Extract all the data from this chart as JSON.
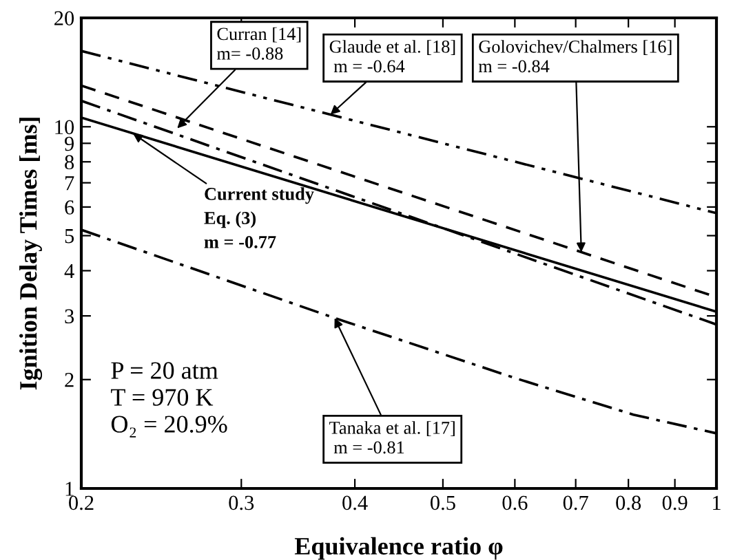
{
  "chart_data": {
    "type": "line",
    "xlabel": "Equivalence ratio φ",
    "ylabel": "Ignition Delay Times [ms]",
    "log": "xy",
    "xlim": [
      0.2,
      1
    ],
    "ylim": [
      1,
      20
    ],
    "xticks": [
      0.2,
      0.3,
      0.4,
      0.5,
      0.6,
      0.7,
      0.8,
      0.9,
      1
    ],
    "yticks": [
      1,
      2,
      3,
      4,
      5,
      6,
      7,
      8,
      9,
      10,
      20
    ],
    "grid": false,
    "legend": false,
    "marker": "none",
    "series": [
      {
        "color": "#000000",
        "line_style": "dashdotdot",
        "x": [
          0.2,
          1
        ],
        "values": [
          16.2,
          5.77
        ]
      },
      {
        "color": "#000000",
        "line_style": "dashed",
        "x": [
          0.2,
          1
        ],
        "values": [
          13.0,
          3.38
        ]
      },
      {
        "color": "#000000",
        "line_style": "dashdot",
        "x": [
          0.2,
          1
        ],
        "values": [
          11.8,
          2.84
        ]
      },
      {
        "color": "#000000",
        "line_style": "solid",
        "x": [
          0.2,
          1
        ],
        "values": [
          10.6,
          3.08
        ]
      },
      {
        "color": "#000000",
        "line_style": "dashdot",
        "x": [
          0.2,
          0.38,
          0.6,
          0.81,
          1
        ],
        "values": [
          5.19,
          2.96,
          2.02,
          1.6,
          1.42
        ]
      }
    ],
    "annotations": [
      {
        "text": "Curran [14]\nm= -0.88",
        "x": 0.255,
        "y": 9.9
      },
      {
        "text": "Glaude et al. [18]\n m = -0.64",
        "x": 0.376,
        "y": 10.8
      },
      {
        "text": "Golovichev/Chalmers [16]\nm = -0.84",
        "x": 0.71,
        "y": 4.5
      },
      {
        "text": "Current study\nEq. (3)\nm = -0.77",
        "x": 0.228,
        "y": 9.58
      },
      {
        "text": "Tanaka et al. [17]\n m = -0.81",
        "x": 0.38,
        "y": 2.96
      },
      "P = 20 atm\nT = 970 K\nO₂ = 20.9%"
    ]
  }
}
